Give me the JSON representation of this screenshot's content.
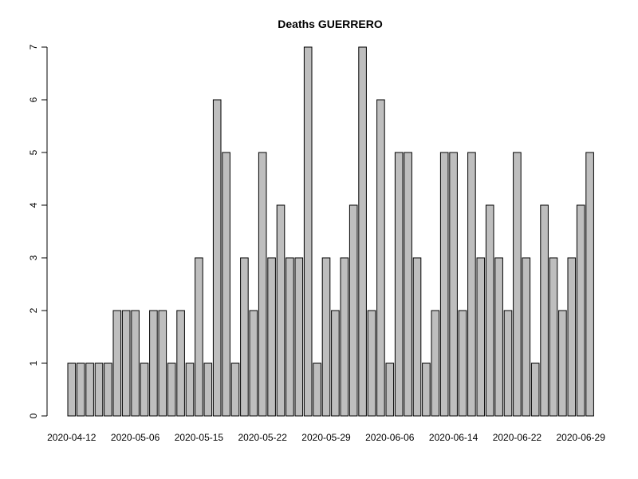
{
  "chart_data": {
    "type": "bar",
    "title": "Deaths GUERRERO",
    "xlabel": "",
    "ylabel": "",
    "ylim": [
      0,
      7
    ],
    "yticks": [
      0,
      1,
      2,
      3,
      4,
      5,
      6,
      7
    ],
    "grid": false,
    "bar_color": "#bebebe",
    "bar_border_color": "#000000",
    "values": [
      1,
      1,
      1,
      1,
      1,
      2,
      2,
      2,
      1,
      2,
      2,
      1,
      2,
      1,
      3,
      1,
      6,
      5,
      1,
      3,
      2,
      5,
      3,
      4,
      3,
      3,
      7,
      1,
      3,
      2,
      3,
      4,
      7,
      2,
      6,
      1,
      5,
      5,
      3,
      1,
      2,
      5,
      5,
      2,
      5,
      3,
      4,
      3,
      2,
      5,
      3,
      1,
      4,
      3,
      2,
      3,
      4,
      5
    ],
    "x_tick_labels": [
      {
        "label": "2020-04-12",
        "index": 0
      },
      {
        "label": "2020-05-06",
        "index": 7
      },
      {
        "label": "2020-05-15",
        "index": 14
      },
      {
        "label": "2020-05-22",
        "index": 21
      },
      {
        "label": "2020-05-29",
        "index": 28
      },
      {
        "label": "2020-06-06",
        "index": 35
      },
      {
        "label": "2020-06-14",
        "index": 42
      },
      {
        "label": "2020-06-22",
        "index": 49
      },
      {
        "label": "2020-06-29",
        "index": 56
      }
    ]
  }
}
